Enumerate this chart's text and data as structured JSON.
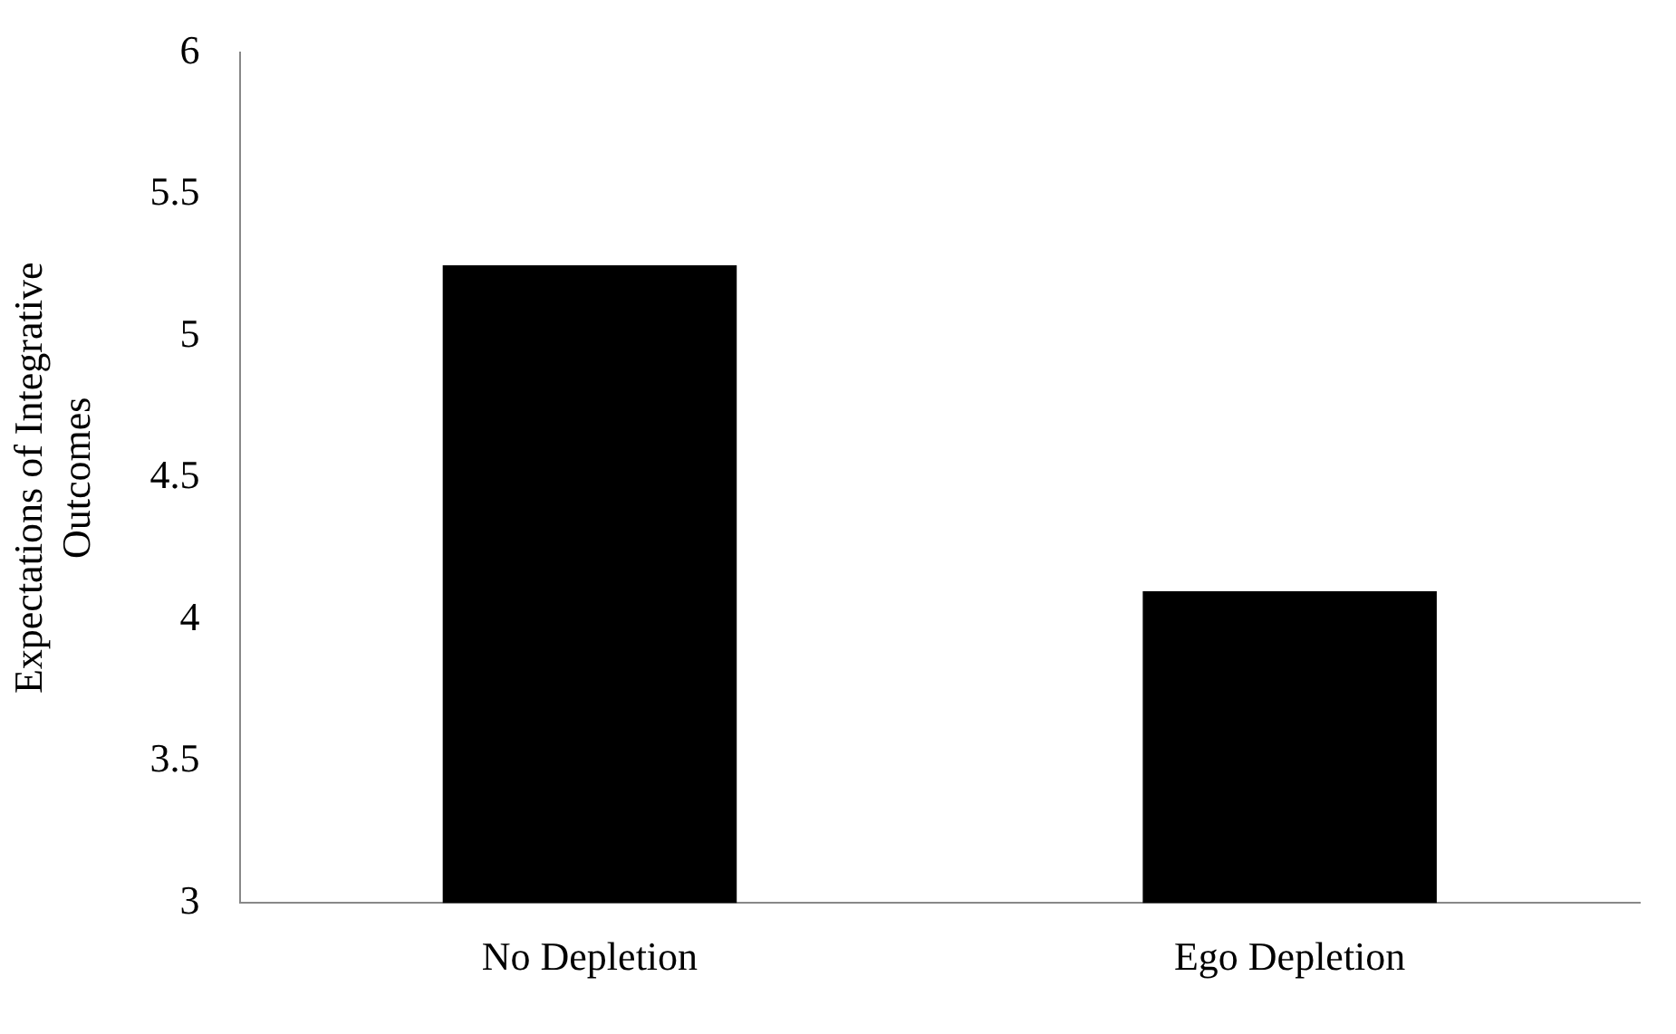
{
  "chart_data": {
    "type": "bar",
    "ylabel": "Expectations of Integrative\nOutcomes",
    "categories": [
      "No Depletion",
      "Ego Depletion"
    ],
    "values": [
      5.25,
      4.1
    ],
    "color": "#000000",
    "ylim": [
      3,
      6
    ],
    "yticks": [
      3,
      3.5,
      4,
      4.5,
      5,
      5.5,
      6
    ],
    "grid": false,
    "legend": false
  }
}
